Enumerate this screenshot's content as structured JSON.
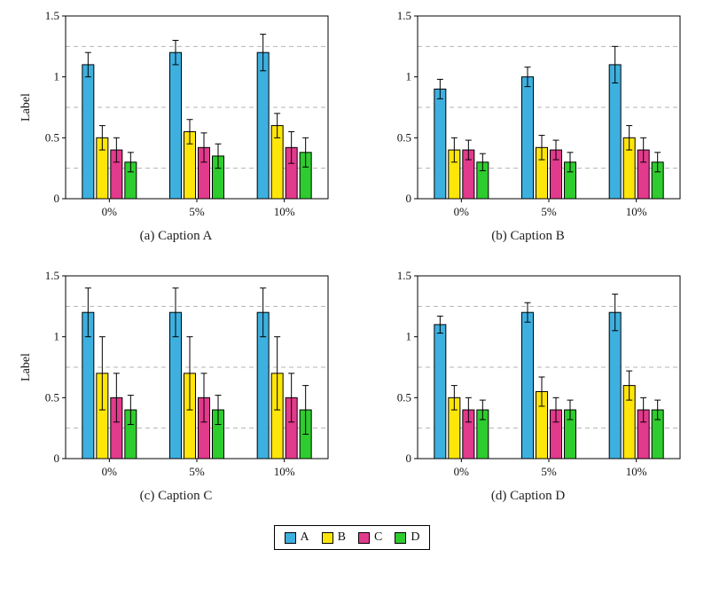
{
  "page": {
    "background": "#ffffff"
  },
  "legend": {
    "entries": [
      {
        "label": "A",
        "color": "#3EB0E0"
      },
      {
        "label": "B",
        "color": "#FFE60A"
      },
      {
        "label": "C",
        "color": "#E23A8C"
      },
      {
        "label": "D",
        "color": "#2FCC2F"
      }
    ]
  },
  "chart_data": [
    {
      "type": "bar",
      "caption": "(a) Caption A",
      "ylabel": "Label",
      "categories": [
        "0%",
        "5%",
        "10%"
      ],
      "ylim": [
        0,
        1.5
      ],
      "yticks": [
        0,
        0.5,
        1,
        1.5
      ],
      "grid_dashed_at": [
        0.25,
        0.75,
        1.25
      ],
      "grid": "dashed-minor",
      "legend_position": "shared-bottom",
      "series": [
        {
          "name": "A",
          "color": "#3EB0E0",
          "values": [
            1.1,
            1.2,
            1.2
          ],
          "errors": [
            0.1,
            0.1,
            0.15
          ]
        },
        {
          "name": "B",
          "color": "#FFE60A",
          "values": [
            0.5,
            0.55,
            0.6
          ],
          "errors": [
            0.1,
            0.1,
            0.1
          ]
        },
        {
          "name": "C",
          "color": "#E23A8C",
          "values": [
            0.4,
            0.42,
            0.42
          ],
          "errors": [
            0.1,
            0.12,
            0.13
          ]
        },
        {
          "name": "D",
          "color": "#2FCC2F",
          "values": [
            0.3,
            0.35,
            0.38
          ],
          "errors": [
            0.08,
            0.1,
            0.12
          ]
        }
      ]
    },
    {
      "type": "bar",
      "caption": "(b) Caption B",
      "ylabel": "",
      "categories": [
        "0%",
        "5%",
        "10%"
      ],
      "ylim": [
        0,
        1.5
      ],
      "yticks": [
        0,
        0.5,
        1,
        1.5
      ],
      "grid_dashed_at": [
        0.25,
        0.75,
        1.25
      ],
      "grid": "dashed-minor",
      "legend_position": "shared-bottom",
      "series": [
        {
          "name": "A",
          "color": "#3EB0E0",
          "values": [
            0.9,
            1.0,
            1.1
          ],
          "errors": [
            0.08,
            0.08,
            0.15
          ]
        },
        {
          "name": "B",
          "color": "#FFE60A",
          "values": [
            0.4,
            0.42,
            0.5
          ],
          "errors": [
            0.1,
            0.1,
            0.1
          ]
        },
        {
          "name": "C",
          "color": "#E23A8C",
          "values": [
            0.4,
            0.4,
            0.4
          ],
          "errors": [
            0.08,
            0.08,
            0.1
          ]
        },
        {
          "name": "D",
          "color": "#2FCC2F",
          "values": [
            0.3,
            0.3,
            0.3
          ],
          "errors": [
            0.07,
            0.08,
            0.08
          ]
        }
      ]
    },
    {
      "type": "bar",
      "caption": "(c) Caption C",
      "ylabel": "Label",
      "categories": [
        "0%",
        "5%",
        "10%"
      ],
      "ylim": [
        0,
        1.5
      ],
      "yticks": [
        0,
        0.5,
        1,
        1.5
      ],
      "grid_dashed_at": [
        0.25,
        0.75,
        1.25
      ],
      "grid": "dashed-minor",
      "legend_position": "shared-bottom",
      "series": [
        {
          "name": "A",
          "color": "#3EB0E0",
          "values": [
            1.2,
            1.2,
            1.2
          ],
          "errors": [
            0.2,
            0.2,
            0.2
          ]
        },
        {
          "name": "B",
          "color": "#FFE60A",
          "values": [
            0.7,
            0.7,
            0.7
          ],
          "errors": [
            0.3,
            0.3,
            0.3
          ]
        },
        {
          "name": "C",
          "color": "#E23A8C",
          "values": [
            0.5,
            0.5,
            0.5
          ],
          "errors": [
            0.2,
            0.2,
            0.2
          ]
        },
        {
          "name": "D",
          "color": "#2FCC2F",
          "values": [
            0.4,
            0.4,
            0.4
          ],
          "errors": [
            0.12,
            0.12,
            0.2
          ]
        }
      ]
    },
    {
      "type": "bar",
      "caption": "(d) Caption D",
      "ylabel": "",
      "categories": [
        "0%",
        "5%",
        "10%"
      ],
      "ylim": [
        0,
        1.5
      ],
      "yticks": [
        0,
        0.5,
        1,
        1.5
      ],
      "grid_dashed_at": [
        0.25,
        0.75,
        1.25
      ],
      "grid": "dashed-minor",
      "legend_position": "shared-bottom",
      "series": [
        {
          "name": "A",
          "color": "#3EB0E0",
          "values": [
            1.1,
            1.2,
            1.2
          ],
          "errors": [
            0.07,
            0.08,
            0.15
          ]
        },
        {
          "name": "B",
          "color": "#FFE60A",
          "values": [
            0.5,
            0.55,
            0.6
          ],
          "errors": [
            0.1,
            0.12,
            0.12
          ]
        },
        {
          "name": "C",
          "color": "#E23A8C",
          "values": [
            0.4,
            0.4,
            0.4
          ],
          "errors": [
            0.1,
            0.1,
            0.1
          ]
        },
        {
          "name": "D",
          "color": "#2FCC2F",
          "values": [
            0.4,
            0.4,
            0.4
          ],
          "errors": [
            0.08,
            0.08,
            0.08
          ]
        }
      ]
    }
  ]
}
